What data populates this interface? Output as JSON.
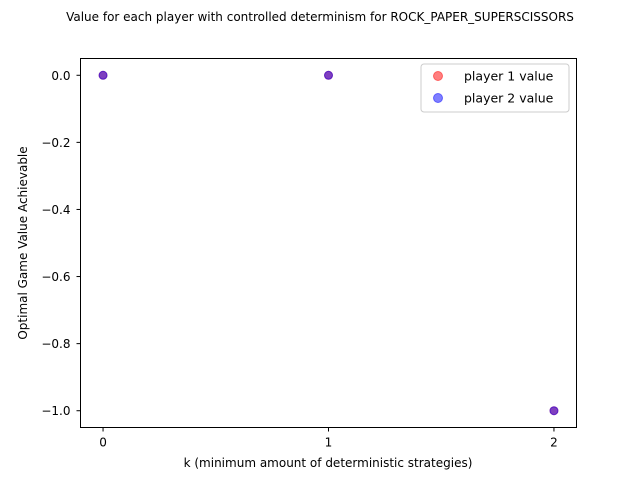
{
  "chart_data": {
    "type": "scatter",
    "title": "Value for each player with controlled determinism for ROCK_PAPER_SUPERSCISSORS",
    "xlabel": "k (minimum amount of deterministic strategies)",
    "ylabel": "Optimal Game Value Achievable",
    "xlim": [
      -0.1,
      2.1
    ],
    "ylim": [
      -1.05,
      0.05
    ],
    "xticks": [
      0,
      1,
      2
    ],
    "xtick_labels": [
      "0",
      "1",
      "2"
    ],
    "yticks": [
      0.0,
      -0.2,
      -0.4,
      -0.6,
      -0.8,
      -1.0
    ],
    "ytick_labels": [
      "0.0",
      "−0.2",
      "−0.4",
      "−0.6",
      "−0.8",
      "−1.0"
    ],
    "grid": false,
    "legend_position": "top-right",
    "series": [
      {
        "name": "player 1 value",
        "color": "#ff0000",
        "alpha": 0.5,
        "x": [
          0,
          1,
          2
        ],
        "y": [
          0.0,
          0.0,
          -1.0
        ]
      },
      {
        "name": "player 2 value",
        "color": "#0000ff",
        "alpha": 0.5,
        "x": [
          0,
          1,
          2
        ],
        "y": [
          0.0,
          0.0,
          -1.0
        ]
      }
    ]
  }
}
